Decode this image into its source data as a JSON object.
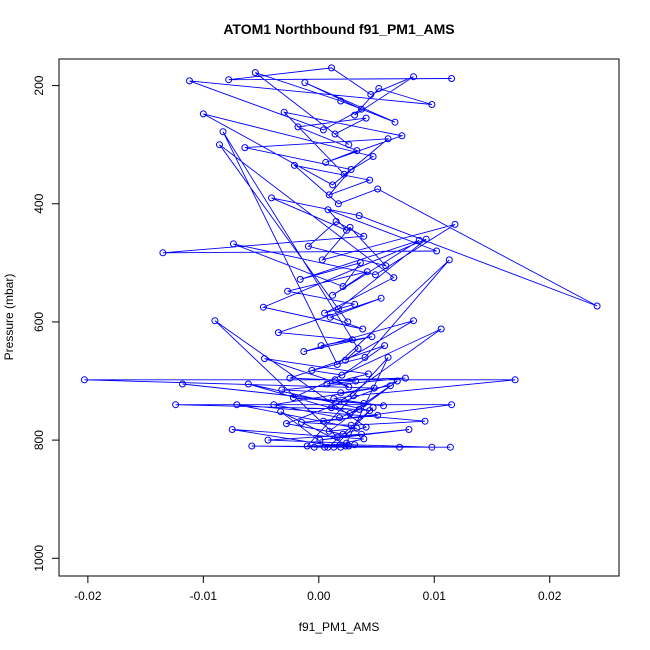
{
  "chart_data": {
    "type": "line",
    "title": "ATOM1 Northbound f91_PM1_AMS",
    "xlabel": "f91_PM1_AMS",
    "ylabel": "Pressure (mbar)",
    "xlim": [
      -0.0225,
      0.026
    ],
    "ylim": [
      1030,
      155
    ],
    "y_reversed": true,
    "x_ticks": [
      -0.02,
      -0.01,
      0.0,
      0.01,
      0.02
    ],
    "x_tick_labels": [
      "-0.02",
      "-0.01",
      "0.00",
      "0.01",
      "0.02"
    ],
    "y_ticks": [
      200,
      400,
      600,
      800,
      1000
    ],
    "y_tick_labels": [
      "200",
      "400",
      "600",
      "800",
      "1000"
    ],
    "grid": false,
    "legend": "none",
    "series": [
      {
        "color": "#0000ff",
        "marker": "open-circle",
        "x": [
          0.0115,
          -0.0078,
          0.0011,
          0.0045,
          0.0082,
          0.0031,
          0.0052,
          0.0098,
          -0.0112,
          0.0004,
          0.0037,
          -0.0012,
          0.0066,
          0.0019,
          -0.0055,
          0.0026,
          0.0014,
          0.0041,
          -0.0018,
          0.0033,
          0.0006,
          0.0072,
          -0.003,
          0.0022,
          0.0047,
          -0.01,
          0.0012,
          0.006,
          -0.0064,
          0.0028,
          0.0009,
          0.0044,
          -0.0021,
          0.0017,
          0.0051,
          0.0241,
          0.0035,
          -0.0041,
          0.0024,
          0.0008,
          0.0102,
          -0.0135,
          0.0039,
          0.0015,
          -0.0009,
          0.0058,
          0.0027,
          0.0003,
          0.0118,
          0.0049,
          -0.0074,
          0.0021,
          0.0036,
          -0.0016,
          0.0087,
          0.0012,
          0.0042,
          -0.0027,
          0.0031,
          0.0005,
          0.0065,
          -0.0086,
          0.0025,
          0.0017,
          0.0093,
          -0.0048,
          0.0038,
          0.001,
          0.0054,
          -0.0035,
          0.0029,
          0.0002,
          0.0046,
          -0.0013,
          0.0082,
          0.0023,
          0.0034,
          -0.0083,
          0.0016,
          0.0113,
          0.004,
          -0.0006,
          0.002,
          0.0057,
          -0.0025,
          0.0032,
          0.0007,
          0.0043,
          -0.0047,
          0.0026,
          0.0014,
          0.0075,
          -0.0032,
          0.0019,
          0.0048,
          -0.0203,
          0.017,
          0.003,
          0.0013,
          0.0056,
          -0.0118,
          0.0022,
          0.0039,
          -0.0022,
          0.0106,
          0.0011,
          0.0044,
          -0.0061,
          0.0027,
          0.0062,
          -0.0039,
          0.0018,
          0.0035,
          -0.0124,
          0.0115,
          0.0004,
          0.0051,
          -0.0015,
          0.0028,
          0.0092,
          -0.0071,
          0.0033,
          0.0009,
          0.0068,
          -0.0028,
          0.0021,
          0.0041,
          -0.009,
          0.0016,
          0.0078,
          0.0001,
          0.0037,
          -0.0044,
          0.0024,
          0.006,
          -0.001,
          0.0031,
          0.0098,
          -0.0058,
          0.0013,
          0.0047,
          0.0008,
          -0.0033,
          0.0026,
          0.007,
          0.0019,
          -0.0075,
          0.0039,
          0.0005,
          0.0114,
          -0.0004,
          0.0023
        ],
        "y": [
          188,
          190,
          170,
          215,
          185,
          250,
          205,
          232,
          192,
          275,
          240,
          195,
          262,
          226,
          178,
          300,
          282,
          255,
          270,
          310,
          330,
          285,
          245,
          350,
          320,
          248,
          368,
          290,
          305,
          342,
          385,
          360,
          335,
          400,
          375,
          573,
          420,
          390,
          445,
          410,
          480,
          483,
          455,
          430,
          472,
          505,
          440,
          495,
          435,
          520,
          468,
          540,
          500,
          528,
          462,
          555,
          515,
          548,
          570,
          585,
          525,
          300,
          600,
          578,
          460,
          575,
          612,
          592,
          560,
          618,
          630,
          640,
          625,
          650,
          598,
          665,
          645,
          278,
          672,
          495,
          660,
          682,
          690,
          640,
          695,
          700,
          705,
          688,
          662,
          710,
          698,
          695,
          715,
          720,
          712,
          698,
          698,
          725,
          730,
          742,
          705,
          735,
          738,
          728,
          612,
          745,
          750,
          705,
          755,
          708,
          740,
          762,
          748,
          740,
          740,
          768,
          758,
          770,
          775,
          768,
          740,
          780,
          785,
          700,
          772,
          790,
          778,
          598,
          795,
          782,
          800,
          790,
          800,
          805,
          660,
          810,
          808,
          812,
          810,
          812,
          745,
          812,
          752,
          810,
          812,
          812,
          782,
          798,
          812,
          812,
          812,
          810
        ]
      }
    ]
  }
}
